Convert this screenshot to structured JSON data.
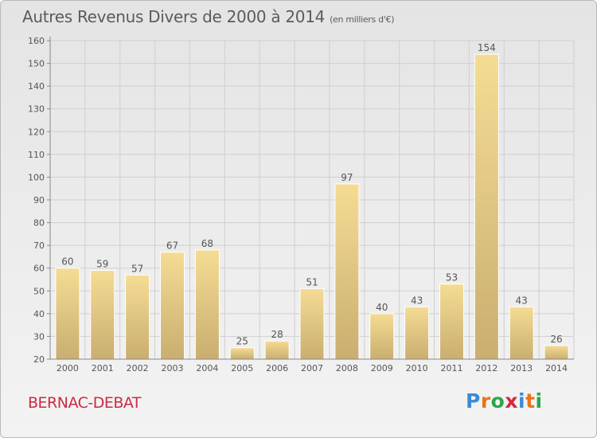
{
  "title": "Autres Revenus Divers de 2000 à 2014",
  "unit": "(en milliers d'€)",
  "town": "BERNAC-DEBAT",
  "brand": {
    "text": "Proxiti",
    "letter_colors": [
      "#3a8bd6",
      "#e8741a",
      "#2aa84a",
      "#d6283a",
      "#3a8bd6",
      "#e8741a",
      "#2aa84a"
    ]
  },
  "colors": {
    "bar_light": "#f5dc94",
    "bar_dark": "#c9ae70",
    "grid": "#cfcfcf",
    "text": "#555555"
  },
  "chart_data": {
    "type": "bar",
    "categories": [
      "2000",
      "2001",
      "2002",
      "2003",
      "2004",
      "2005",
      "2006",
      "2007",
      "2008",
      "2009",
      "2010",
      "2011",
      "2012",
      "2013",
      "2014"
    ],
    "values": [
      60,
      59,
      57,
      67,
      68,
      25,
      28,
      51,
      97,
      40,
      43,
      53,
      154,
      43,
      26
    ],
    "ylim": [
      20,
      160
    ],
    "yticks": [
      20,
      30,
      40,
      50,
      60,
      70,
      80,
      90,
      100,
      110,
      120,
      130,
      140,
      150,
      160
    ],
    "grid": true,
    "data_labels": true
  }
}
